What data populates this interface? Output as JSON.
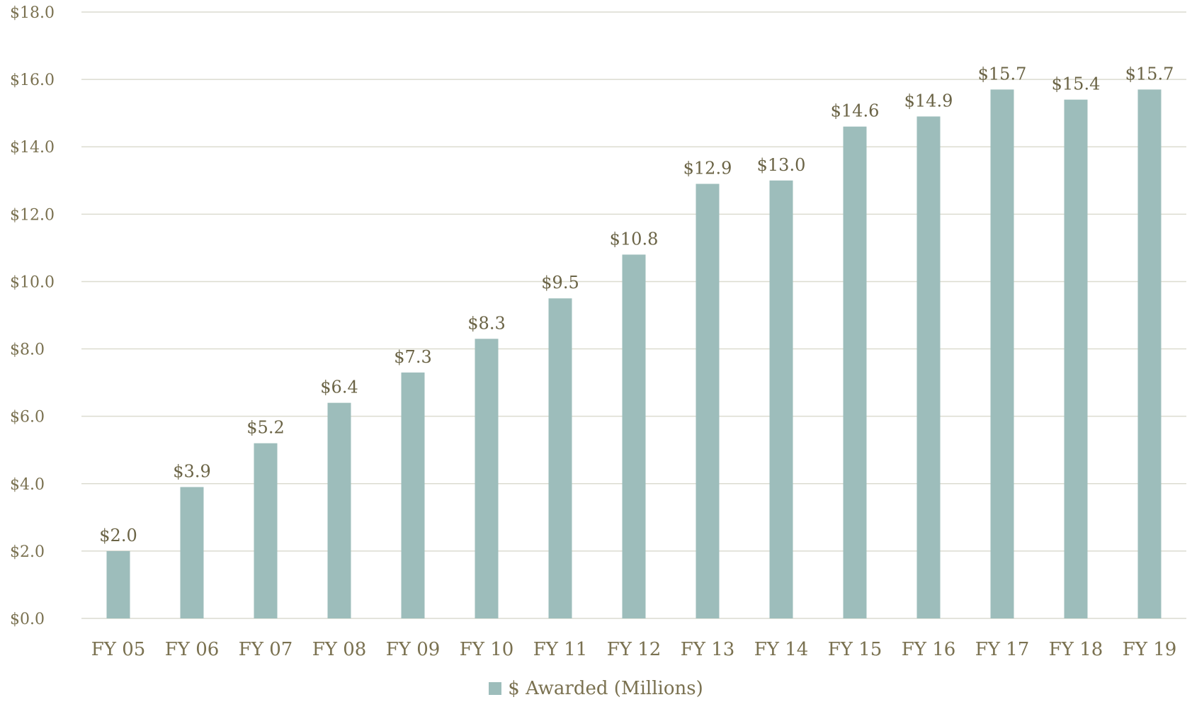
{
  "chart_data": {
    "type": "bar",
    "categories": [
      "FY 05",
      "FY 06",
      "FY 07",
      "FY 08",
      "FY 09",
      "FY 10",
      "FY 11",
      "FY 12",
      "FY 13",
      "FY 14",
      "FY 15",
      "FY 16",
      "FY 17",
      "FY 18",
      "FY 19"
    ],
    "series": [
      {
        "name": "$ Awarded (Millions)",
        "values": [
          2.0,
          3.9,
          5.2,
          6.4,
          7.3,
          8.3,
          9.5,
          10.8,
          12.9,
          13.0,
          14.6,
          14.9,
          15.7,
          15.4,
          15.7
        ]
      }
    ],
    "data_labels": [
      "$2.0",
      "$3.9",
      "$5.2",
      "$6.4",
      "$7.3",
      "$8.3",
      "$9.5",
      "$10.8",
      "$12.9",
      "$13.0",
      "$14.6",
      "$14.9",
      "$15.7",
      "$15.4",
      "$15.7"
    ],
    "y_ticks": [
      0,
      2,
      4,
      6,
      8,
      10,
      12,
      14,
      16,
      18
    ],
    "y_tick_labels": [
      "$0.0",
      "$2.0",
      "$4.0",
      "$6.0",
      "$8.0",
      "$10.0",
      "$12.0",
      "$14.0",
      "$16.0",
      "$18.0"
    ],
    "ylim": [
      0,
      18
    ],
    "grid": true,
    "legend_position": "bottom",
    "bar_color": "#9dbdbb"
  },
  "legend": {
    "label": "$ Awarded (Millions)"
  }
}
